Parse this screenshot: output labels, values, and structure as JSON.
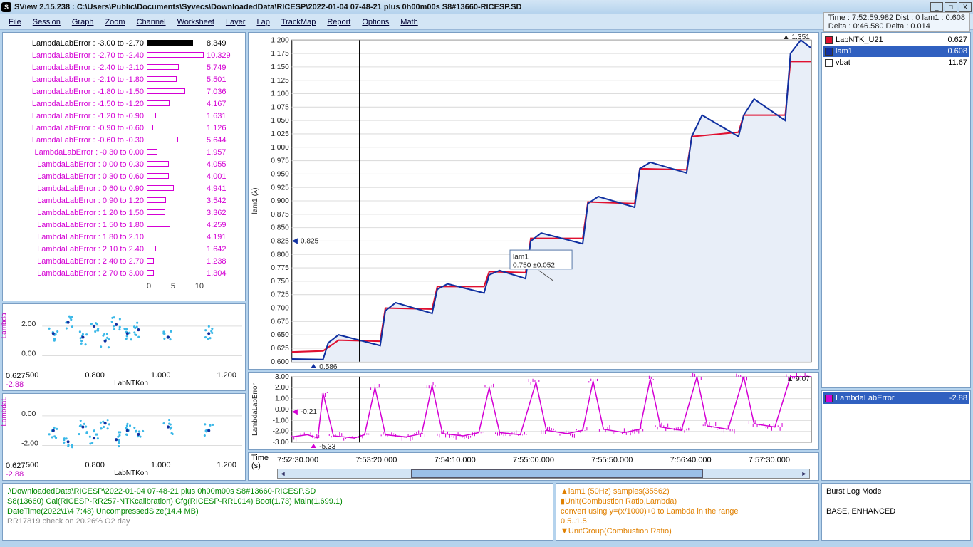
{
  "window": {
    "app_icon_letter": "S",
    "title": "SView 2.15.238  :  C:\\Users\\Public\\Documents\\Syvecs\\DownloadedData\\RICESP\\2022-01-04 07-48-21 plus 0h00m00s S8#13660-RICESP.SD",
    "btn_min": "_",
    "btn_max": "□",
    "btn_close": "X"
  },
  "menu": [
    "File",
    "Session",
    "Graph",
    "Zoom",
    "Channel",
    "Worksheet",
    "Layer",
    "Lap",
    "TrackMap",
    "Report",
    "Options",
    "Math"
  ],
  "info_box": {
    "line1": "Time : 7:52:59.982    Dist : 0    lam1 : 0.608",
    "line2": "Delta : 0:46.580                      Delta : 0.014"
  },
  "histogram": {
    "label_prefix": "LambdaLabError : ",
    "rows": [
      {
        "range": "-3.00 to -2.70",
        "val": 8.349,
        "bar": 0.81,
        "color": "#000000"
      },
      {
        "range": "-2.70 to -2.40",
        "val": 10.329,
        "bar": 1.0,
        "color": "#d400d4"
      },
      {
        "range": "-2.40 to -2.10",
        "val": 5.749,
        "bar": 0.56,
        "color": "#d400d4"
      },
      {
        "range": "-2.10 to -1.80",
        "val": 5.501,
        "bar": 0.53,
        "color": "#d400d4"
      },
      {
        "range": "-1.80 to -1.50",
        "val": 7.036,
        "bar": 0.68,
        "color": "#d400d4"
      },
      {
        "range": "-1.50 to -1.20",
        "val": 4.167,
        "bar": 0.4,
        "color": "#d400d4"
      },
      {
        "range": "-1.20 to -0.90",
        "val": 1.631,
        "bar": 0.16,
        "color": "#d400d4"
      },
      {
        "range": "-0.90 to -0.60",
        "val": 1.126,
        "bar": 0.11,
        "color": "#d400d4"
      },
      {
        "range": "-0.60 to -0.30",
        "val": 5.644,
        "bar": 0.55,
        "color": "#d400d4"
      },
      {
        "range": "-0.30 to 0.00",
        "val": 1.957,
        "bar": 0.19,
        "color": "#d400d4"
      },
      {
        "range": "0.00 to 0.30",
        "val": 4.055,
        "bar": 0.39,
        "color": "#d400d4"
      },
      {
        "range": "0.30 to 0.60",
        "val": 4.001,
        "bar": 0.39,
        "color": "#d400d4"
      },
      {
        "range": "0.60 to 0.90",
        "val": 4.941,
        "bar": 0.48,
        "color": "#d400d4"
      },
      {
        "range": "0.90 to 1.20",
        "val": 3.542,
        "bar": 0.34,
        "color": "#d400d4"
      },
      {
        "range": "1.20 to 1.50",
        "val": 3.362,
        "bar": 0.33,
        "color": "#d400d4"
      },
      {
        "range": "1.50 to 1.80",
        "val": 4.259,
        "bar": 0.41,
        "color": "#d400d4"
      },
      {
        "range": "1.80 to 2.10",
        "val": 4.191,
        "bar": 0.41,
        "color": "#d400d4"
      },
      {
        "range": "2.10 to 2.40",
        "val": 1.642,
        "bar": 0.16,
        "color": "#d400d4"
      },
      {
        "range": "2.40 to 2.70",
        "val": 1.238,
        "bar": 0.12,
        "color": "#d400d4"
      },
      {
        "range": "2.70 to 3.00",
        "val": 1.304,
        "bar": 0.13,
        "color": "#d400d4"
      }
    ],
    "scale": [
      "0",
      "5",
      "10"
    ]
  },
  "miniplot1": {
    "ylabel": "Lambda",
    "xlabel": "LabNTKon",
    "yticks": [
      "0.00",
      "2.00"
    ],
    "xticks": [
      "500",
      "0.800",
      "1.000",
      "1.200"
    ],
    "val_a": "0.627",
    "val_b": "-2.88"
  },
  "miniplot2": {
    "ylabel": "LambdaL",
    "xlabel": "LabNTKon",
    "yticks": [
      "-2.00",
      "0.00"
    ],
    "xticks": [
      "500",
      "0.800",
      "1.000",
      "1.200"
    ],
    "val_a": "0.627",
    "val_b": "-2.88"
  },
  "main_chart": {
    "ylabel": "lam1 (λ)",
    "ylim": [
      0.6,
      1.2
    ],
    "ytick": 0.025,
    "cursor_top": "1.351",
    "cursor_mid": "0.825",
    "cursor_bot": "0.586",
    "tooltip_title": "lam1",
    "tooltip_value": "0.750 ±0.052",
    "series": {
      "red": {
        "color": "#e01030",
        "width": 2,
        "pts": [
          [
            0,
            0.618
          ],
          [
            0.06,
            0.62
          ],
          [
            0.09,
            0.64
          ],
          [
            0.17,
            0.638
          ],
          [
            0.18,
            0.7
          ],
          [
            0.27,
            0.698
          ],
          [
            0.28,
            0.74
          ],
          [
            0.37,
            0.74
          ],
          [
            0.38,
            0.768
          ],
          [
            0.45,
            0.766
          ],
          [
            0.46,
            0.83
          ],
          [
            0.56,
            0.83
          ],
          [
            0.57,
            0.898
          ],
          [
            0.66,
            0.895
          ],
          [
            0.67,
            0.96
          ],
          [
            0.76,
            0.958
          ],
          [
            0.77,
            1.02
          ],
          [
            0.86,
            1.028
          ],
          [
            0.87,
            1.06
          ],
          [
            0.95,
            1.06
          ],
          [
            0.96,
            1.16
          ],
          [
            1.0,
            1.16
          ]
        ]
      },
      "blue": {
        "color": "#1030a0",
        "width": 2,
        "pts": [
          [
            0,
            0.605
          ],
          [
            0.06,
            0.604
          ],
          [
            0.07,
            0.635
          ],
          [
            0.09,
            0.65
          ],
          [
            0.17,
            0.63
          ],
          [
            0.18,
            0.695
          ],
          [
            0.2,
            0.71
          ],
          [
            0.27,
            0.69
          ],
          [
            0.28,
            0.735
          ],
          [
            0.3,
            0.745
          ],
          [
            0.37,
            0.728
          ],
          [
            0.38,
            0.762
          ],
          [
            0.4,
            0.77
          ],
          [
            0.45,
            0.755
          ],
          [
            0.46,
            0.825
          ],
          [
            0.48,
            0.84
          ],
          [
            0.56,
            0.82
          ],
          [
            0.57,
            0.895
          ],
          [
            0.59,
            0.908
          ],
          [
            0.66,
            0.888
          ],
          [
            0.67,
            0.96
          ],
          [
            0.69,
            0.972
          ],
          [
            0.76,
            0.952
          ],
          [
            0.77,
            1.02
          ],
          [
            0.79,
            1.06
          ],
          [
            0.86,
            1.02
          ],
          [
            0.87,
            1.06
          ],
          [
            0.89,
            1.09
          ],
          [
            0.95,
            1.05
          ],
          [
            0.96,
            1.175
          ],
          [
            0.98,
            1.2
          ],
          [
            1.0,
            1.185
          ]
        ]
      }
    },
    "fill_color": "#e8eef8"
  },
  "err_chart": {
    "ylabel": "LambdaLabError",
    "ylim": [
      -3,
      3
    ],
    "yticks": [
      -3,
      -2,
      -1,
      0,
      1,
      2,
      3
    ],
    "marker_top": "9.07",
    "marker_mid": "-0.21",
    "marker_bot": "-5.33",
    "color": "#d400d4",
    "pts": [
      [
        0,
        -2.5
      ],
      [
        0.03,
        -2.3
      ],
      [
        0.05,
        -2.6
      ],
      [
        0.06,
        1.5
      ],
      [
        0.08,
        -2.4
      ],
      [
        0.12,
        -2.6
      ],
      [
        0.14,
        -2.3
      ],
      [
        0.16,
        2.0
      ],
      [
        0.18,
        -2.3
      ],
      [
        0.22,
        -2.5
      ],
      [
        0.25,
        -2.2
      ],
      [
        0.27,
        2.2
      ],
      [
        0.29,
        -2.2
      ],
      [
        0.33,
        -2.4
      ],
      [
        0.36,
        -2.1
      ],
      [
        0.38,
        2.0
      ],
      [
        0.4,
        -2.1
      ],
      [
        0.44,
        -2.3
      ],
      [
        0.47,
        2.5
      ],
      [
        0.49,
        -1.9
      ],
      [
        0.53,
        -2.2
      ],
      [
        0.56,
        -1.9
      ],
      [
        0.58,
        2.6
      ],
      [
        0.6,
        -1.8
      ],
      [
        0.64,
        -2.1
      ],
      [
        0.67,
        -1.8
      ],
      [
        0.69,
        2.8
      ],
      [
        0.71,
        -1.6
      ],
      [
        0.75,
        -1.9
      ],
      [
        0.78,
        3.0
      ],
      [
        0.8,
        -1.5
      ],
      [
        0.84,
        -1.8
      ],
      [
        0.87,
        3.0
      ],
      [
        0.89,
        -1.3
      ],
      [
        0.93,
        -1.6
      ],
      [
        0.96,
        3.0
      ],
      [
        0.98,
        3.0
      ],
      [
        1.0,
        3.0
      ]
    ]
  },
  "time_axis": {
    "label_line1": "Time",
    "label_line2": "(s)",
    "ticks": [
      "7:52:30.000",
      "7:53:20.000",
      "7:54:10.000",
      "7:55:00.000",
      "7:55:50.000",
      "7:56:40.000",
      "7:57:30.000"
    ]
  },
  "channels": [
    {
      "swatch": "#e01030",
      "name": "LabNTK_U21",
      "val": "0.627",
      "sel": false
    },
    {
      "swatch": "#1030a0",
      "name": "lam1",
      "val": "0.608",
      "sel": true
    },
    {
      "swatch": "#ffffff",
      "name": "vbat",
      "val": "11.67",
      "sel": false
    }
  ],
  "err_channel": {
    "swatch": "#d400d4",
    "name": "LambdaLabError",
    "val": "-2.88"
  },
  "footer": {
    "file_line": ".\\DownloadedData\\RICESP\\2022-01-04 07-48-21 plus 0h00m00s S8#13660-RICESP.SD",
    "cal_line": "S8(13660) Cal(RICESP-RR257-NTKcalibration) Cfg(RICESP-RRL014) Boot(1.73) Main(1.699.1)",
    "date_line": "DateTime(2022\\1\\4 7:48) UncompressedSize(14.4 MB)",
    "check_line": "RR17819 check on 20.26% O2 day",
    "orange": [
      "▲lam1 (50Hz) samples(35562)",
      "▮Unit(Combustion Ratio,Lambda)",
      "  convert using y=(x/1000)+0 to Lambda in the range",
      "  0.5..1.5",
      "▼UnitGroup(Combustion Ratio)"
    ],
    "burst_title": "Burst Log Mode",
    "burst_mode": "BASE, ENHANCED"
  }
}
